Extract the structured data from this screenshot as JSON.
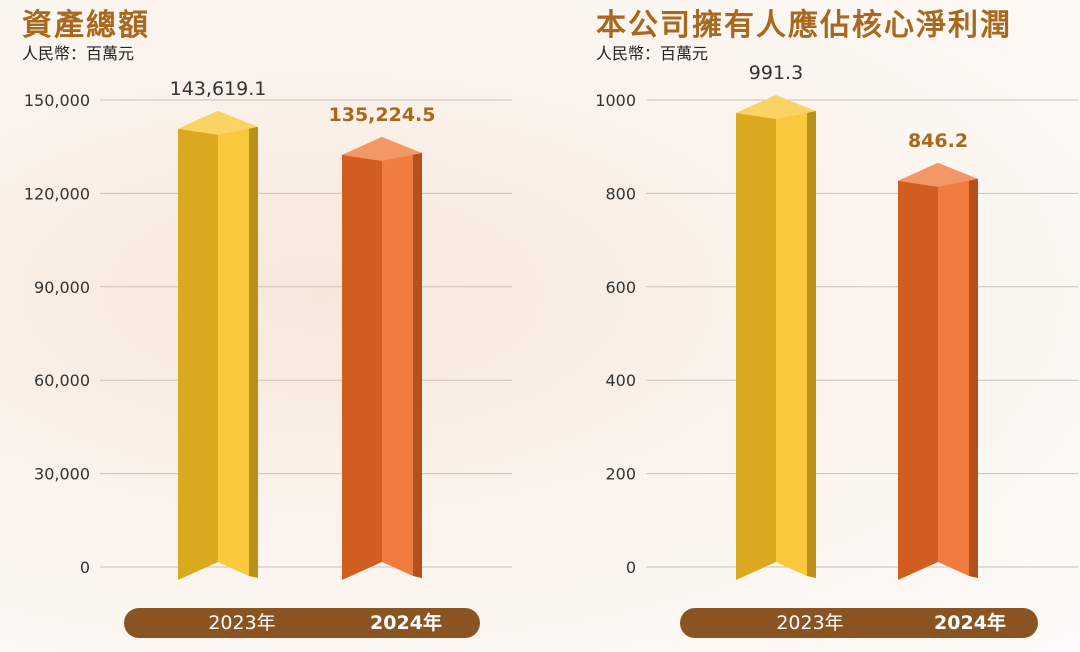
{
  "chart_data": [
    {
      "type": "bar",
      "title": "資產總額",
      "unit": "人民幣：百萬元",
      "categories": [
        "2023年",
        "2024年"
      ],
      "values": [
        143619.1,
        135224.5
      ],
      "value_labels": [
        "143,619.1",
        "135,224.5"
      ],
      "yticks": [
        0,
        30000,
        60000,
        90000,
        120000,
        150000
      ],
      "ytick_labels": [
        "0",
        "30,000",
        "60,000",
        "90,000",
        "120,000",
        "150,000"
      ],
      "ylim": [
        0,
        150000
      ],
      "grid": true,
      "colors": [
        "#f9c023",
        "#ef6a25"
      ]
    },
    {
      "type": "bar",
      "title": "本公司擁有人應佔核心淨利潤",
      "unit": "人民幣：百萬元",
      "categories": [
        "2023年",
        "2024年"
      ],
      "values": [
        991.3,
        846.2
      ],
      "value_labels": [
        "991.3",
        "846.2"
      ],
      "yticks": [
        0,
        200,
        400,
        600,
        800,
        1000
      ],
      "ytick_labels": [
        "0",
        "200",
        "400",
        "600",
        "800",
        "1000"
      ],
      "ylim": [
        0,
        1000
      ],
      "grid": true,
      "colors": [
        "#f9c023",
        "#ef6a25"
      ]
    }
  ]
}
